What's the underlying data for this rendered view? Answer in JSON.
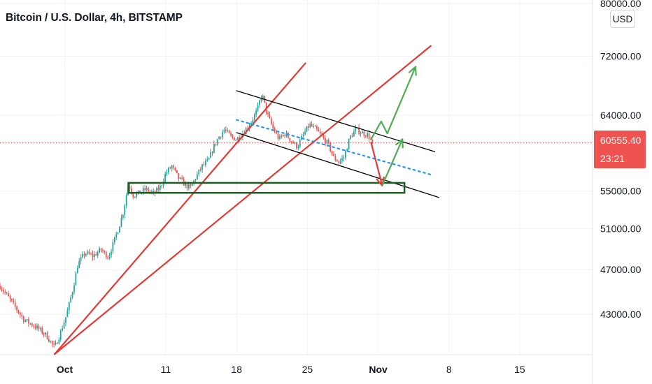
{
  "title": "Bitcoin / U.S. Dollar, 4h, BITSTAMP",
  "currency_badge": "USD",
  "last_price": "60555.40",
  "countdown": "23:21",
  "colors": {
    "up": "#26a69a",
    "down": "#ef5350",
    "trendline": "#e53935",
    "channel": "#000000",
    "midline": "#2196f3",
    "support_box": "#1b5e20",
    "projection_up": "#4caf50",
    "projection_down": "#e53935",
    "price_line": "#ef5350"
  },
  "chart_data": {
    "type": "candlestick",
    "symbol": "BTCUSD",
    "timeframe": "4h",
    "exchange": "BITSTAMP",
    "y_axis": {
      "scale": "log",
      "ticks": [
        "80000.00",
        "72000.00",
        "64000.00",
        "55000.00",
        "51000.00",
        "47000.00",
        "43000.00"
      ],
      "ylim": [
        39000,
        80500
      ]
    },
    "x_axis": {
      "ticks": [
        {
          "label": "Oct",
          "bold": true,
          "day": 1
        },
        {
          "label": "11",
          "bold": false,
          "day": 11
        },
        {
          "label": "18",
          "bold": false,
          "day": 18
        },
        {
          "label": "25",
          "bold": false,
          "day": 25
        },
        {
          "label": "Nov",
          "bold": true,
          "day": 32
        },
        {
          "label": "8",
          "bold": false,
          "day": 39
        },
        {
          "label": "15",
          "bold": false,
          "day": 46
        }
      ],
      "xlim": [
        -5.4,
        53.2
      ]
    },
    "price_path": [
      [
        -5.4,
        45500
      ],
      [
        -4.2,
        44000
      ],
      [
        -3,
        42500
      ],
      [
        -1.8,
        41900
      ],
      [
        -0.8,
        41200
      ],
      [
        0,
        40200
      ],
      [
        0.6,
        41500
      ],
      [
        1.2,
        43000
      ],
      [
        1.8,
        45200
      ],
      [
        2.3,
        47500
      ],
      [
        3.0,
        48600
      ],
      [
        3.8,
        48300
      ],
      [
        4.6,
        48900
      ],
      [
        5.3,
        48200
      ],
      [
        5.8,
        49500
      ],
      [
        6.3,
        51000
      ],
      [
        6.8,
        52800
      ],
      [
        7.3,
        55800
      ],
      [
        7.8,
        54500
      ],
      [
        8.4,
        54800
      ],
      [
        9.0,
        55200
      ],
      [
        9.8,
        54700
      ],
      [
        10.5,
        55500
      ],
      [
        11.0,
        57000
      ],
      [
        11.6,
        57800
      ],
      [
        12.2,
        56500
      ],
      [
        12.8,
        55800
      ],
      [
        13.4,
        55300
      ],
      [
        14.0,
        56600
      ],
      [
        14.6,
        57800
      ],
      [
        15.2,
        58400
      ],
      [
        15.7,
        60000
      ],
      [
        16.2,
        61200
      ],
      [
        16.8,
        62200
      ],
      [
        17.4,
        61300
      ],
      [
        18.0,
        61000
      ],
      [
        18.8,
        62000
      ],
      [
        19.5,
        63300
      ],
      [
        20.0,
        64500
      ],
      [
        20.5,
        66800
      ],
      [
        21.0,
        64200
      ],
      [
        21.6,
        62300
      ],
      [
        22.2,
        61000
      ],
      [
        22.8,
        61700
      ],
      [
        23.4,
        60800
      ],
      [
        24.0,
        60100
      ],
      [
        24.6,
        61500
      ],
      [
        25.2,
        62800
      ],
      [
        25.9,
        62100
      ],
      [
        26.5,
        61200
      ],
      [
        27.1,
        60300
      ],
      [
        27.6,
        58800
      ],
      [
        28.1,
        58300
      ],
      [
        28.6,
        58800
      ],
      [
        29.2,
        61200
      ],
      [
        29.8,
        62200
      ],
      [
        30.4,
        61800
      ],
      [
        31.0,
        61500
      ],
      [
        31.4,
        60555
      ]
    ],
    "price_range": {
      "low": 39600,
      "high": 67000
    },
    "last_price": 60555.4,
    "drawings": {
      "trendlines_from": {
        "day": 0,
        "price": 39700
      },
      "steep_trendline_to": {
        "day": 24.8,
        "price": 71000
      },
      "shallow_trendline_to": {
        "day": 37.2,
        "price": 73500
      },
      "channel_upper": [
        [
          18.0,
          67200
        ],
        [
          37.6,
          59500
        ]
      ],
      "channel_lower": [
        [
          18.0,
          61800
        ],
        [
          38.0,
          54300
        ]
      ],
      "channel_mid_dotted": [
        [
          18.0,
          63400
        ],
        [
          37.3,
          56800
        ]
      ],
      "support_zone": {
        "day_from": 7.3,
        "day_to": 34.6,
        "price_low": 54800,
        "price_high": 55900
      },
      "projection_down": [
        [
          31.3,
          60600
        ],
        [
          32.4,
          55600
        ]
      ],
      "projection_up": [
        [
          32.4,
          55600
        ],
        [
          34.4,
          61000
        ]
      ],
      "projection_up_upper": [
        [
          31.3,
          61000
        ],
        [
          32.3,
          63200
        ],
        [
          32.9,
          61700
        ],
        [
          35.7,
          70500
        ]
      ]
    }
  }
}
